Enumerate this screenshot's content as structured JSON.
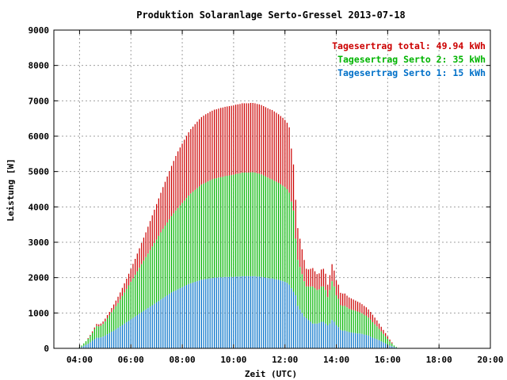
{
  "chart_data": {
    "type": "bar",
    "title": "Produktion Solaranlage Serto-Gressel 2013-07-18",
    "xlabel": "Zeit (UTC)",
    "ylabel": "Leistung [W]",
    "ylim": [
      0,
      9000
    ],
    "yticks": [
      "0",
      "1000",
      "2000",
      "3000",
      "4000",
      "5000",
      "6000",
      "7000",
      "8000",
      "9000"
    ],
    "xlim_hours": [
      3,
      20
    ],
    "xticks": [
      {
        "hour": 4,
        "label": "04:00"
      },
      {
        "hour": 6,
        "label": "06:00"
      },
      {
        "hour": 8,
        "label": "08:00"
      },
      {
        "hour": 10,
        "label": "10:00"
      },
      {
        "hour": 12,
        "label": "12:00"
      },
      {
        "hour": 14,
        "label": "14:00"
      },
      {
        "hour": 16,
        "label": "16:00"
      },
      {
        "hour": 18,
        "label": "18:00"
      },
      {
        "hour": 20,
        "label": "20:00"
      }
    ],
    "grid": true,
    "stacked": true,
    "legend_position": "top-right",
    "legend": [
      {
        "label": "Tagesertrag total: 49.94 kWh",
        "color": "#cc0000"
      },
      {
        "label": "Tagesertrag Serto 2: 35 kWh",
        "color": "#00b400"
      },
      {
        "label": "Tagesertrag Serto 1: 15 kWh",
        "color": "#0070c8"
      }
    ],
    "x_step_minutes": 5,
    "x_start": "04:00",
    "series": [
      {
        "color": "#0070c8",
        "values": [
          20,
          40,
          70,
          100,
          130,
          170,
          220,
          260,
          300,
          300,
          310,
          330,
          360,
          400,
          430,
          470,
          500,
          540,
          580,
          620,
          660,
          700,
          740,
          780,
          820,
          860,
          900,
          940,
          980,
          1020,
          1060,
          1100,
          1140,
          1180,
          1220,
          1260,
          1300,
          1340,
          1380,
          1420,
          1460,
          1500,
          1540,
          1580,
          1610,
          1640,
          1670,
          1700,
          1730,
          1760,
          1790,
          1820,
          1840,
          1860,
          1880,
          1900,
          1920,
          1940,
          1950,
          1960,
          1970,
          1980,
          1990,
          2000,
          2000,
          2010,
          2010,
          2010,
          2020,
          2020,
          2020,
          2020,
          2020,
          2030,
          2030,
          2030,
          2040,
          2040,
          2040,
          2040,
          2040,
          2040,
          2040,
          2030,
          2030,
          2020,
          2010,
          2000,
          1990,
          1980,
          1980,
          1960,
          1950,
          1940,
          1920,
          1900,
          1880,
          1850,
          1800,
          1700,
          1600,
          1500,
          1200,
          1100,
          1000,
          900,
          850,
          800,
          750,
          700,
          700,
          700,
          720,
          750,
          750,
          700,
          650,
          700,
          800,
          750,
          650,
          600,
          520,
          500,
          500,
          480,
          460,
          450,
          440,
          430,
          420,
          420,
          410,
          390,
          380,
          360,
          330,
          300,
          280,
          260,
          230,
          200,
          170,
          140,
          110,
          80,
          60,
          40,
          20
        ]
      },
      {
        "color": "#00b400",
        "values": [
          20,
          40,
          70,
          100,
          140,
          180,
          220,
          280,
          330,
          320,
          330,
          360,
          400,
          450,
          500,
          550,
          600,
          650,
          700,
          760,
          820,
          880,
          940,
          1000,
          1060,
          1120,
          1180,
          1240,
          1300,
          1360,
          1420,
          1480,
          1540,
          1600,
          1660,
          1720,
          1780,
          1840,
          1900,
          1960,
          2010,
          2060,
          2110,
          2160,
          2210,
          2260,
          2300,
          2340,
          2380,
          2420,
          2460,
          2500,
          2540,
          2570,
          2600,
          2630,
          2660,
          2690,
          2710,
          2730,
          2750,
          2770,
          2790,
          2800,
          2810,
          2820,
          2830,
          2840,
          2850,
          2860,
          2870,
          2880,
          2890,
          2900,
          2910,
          2920,
          2930,
          2930,
          2930,
          2930,
          2940,
          2940,
          2930,
          2920,
          2910,
          2900,
          2880,
          2860,
          2840,
          2820,
          2800,
          2780,
          2760,
          2740,
          2720,
          2700,
          2680,
          2650,
          2600,
          2450,
          2300,
          1600,
          1300,
          1200,
          1100,
          1000,
          900,
          950,
          1000,
          1050,
          1000,
          950,
          950,
          1000,
          1000,
          950,
          800,
          950,
          1100,
          1000,
          850,
          800,
          700,
          700,
          700,
          680,
          660,
          650,
          640,
          630,
          620,
          600,
          580,
          560,
          540,
          510,
          480,
          440,
          400,
          360,
          320,
          280,
          240,
          200,
          160,
          120,
          80,
          40,
          20
        ]
      },
      {
        "color": "#cc0000",
        "values": [
          0,
          0,
          0,
          0,
          20,
          30,
          40,
          50,
          60,
          60,
          60,
          70,
          80,
          90,
          100,
          120,
          140,
          160,
          180,
          200,
          230,
          260,
          290,
          330,
          370,
          410,
          450,
          500,
          550,
          600,
          650,
          700,
          760,
          820,
          880,
          940,
          1000,
          1060,
          1120,
          1180,
          1240,
          1300,
          1360,
          1420,
          1480,
          1540,
          1600,
          1640,
          1680,
          1720,
          1760,
          1790,
          1820,
          1840,
          1860,
          1880,
          1900,
          1910,
          1920,
          1930,
          1930,
          1940,
          1940,
          1950,
          1950,
          1950,
          1960,
          1960,
          1960,
          1960,
          1960,
          1960,
          1960,
          1960,
          1960,
          1960,
          1960,
          1960,
          1960,
          1960,
          1960,
          1960,
          1960,
          1960,
          1960,
          1960,
          1960,
          1960,
          1960,
          1960,
          1960,
          1960,
          1950,
          1940,
          1930,
          1920,
          1900,
          1880,
          1850,
          1500,
          1300,
          1100,
          900,
          800,
          700,
          600,
          500,
          480,
          500,
          520,
          480,
          450,
          450,
          480,
          500,
          460,
          350,
          420,
          480,
          450,
          420,
          400,
          350,
          350,
          350,
          330,
          320,
          310,
          300,
          290,
          280,
          270,
          260,
          250,
          240,
          230,
          220,
          210,
          190,
          170,
          150,
          130,
          110,
          90,
          70,
          50,
          30
        ]
      }
    ]
  }
}
